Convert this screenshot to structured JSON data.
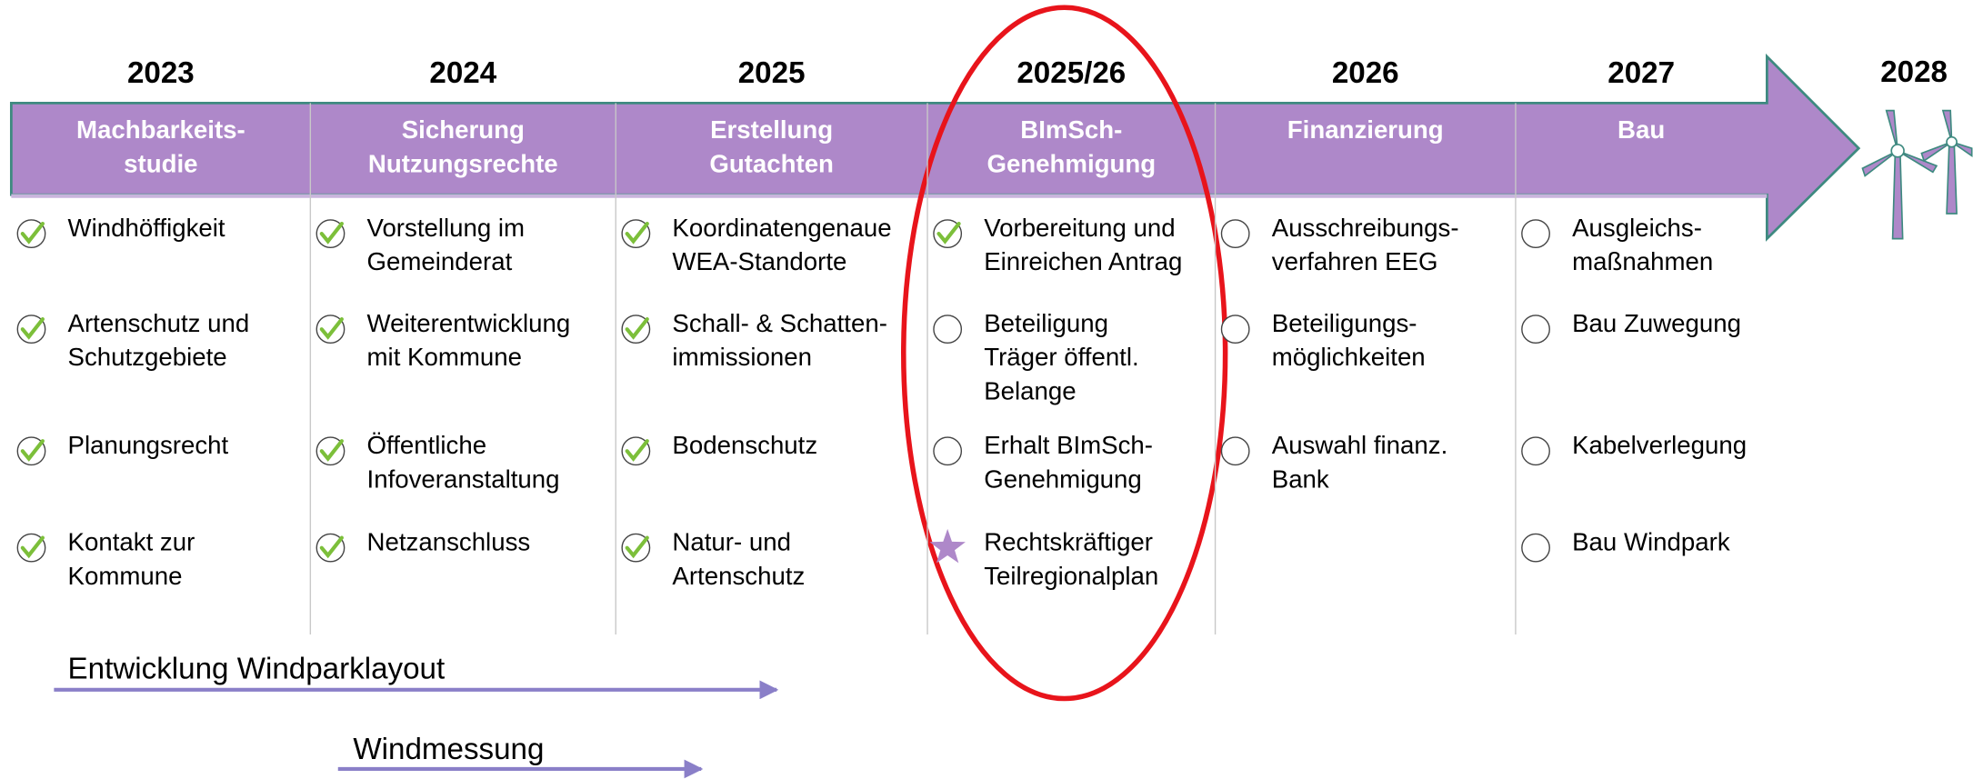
{
  "timeline": {
    "columns": [
      {
        "year": "2023",
        "phase": [
          "Machbarkeits-",
          "studie"
        ],
        "items": [
          {
            "status": "done",
            "lines": [
              "Windhöffigkeit"
            ]
          },
          {
            "status": "done",
            "lines": [
              "Artenschutz und",
              "Schutzgebiete"
            ]
          },
          {
            "status": "done",
            "lines": [
              "Planungsrecht"
            ]
          },
          {
            "status": "done",
            "lines": [
              "Kontakt zur",
              "Kommune"
            ]
          }
        ]
      },
      {
        "year": "2024",
        "phase": [
          "Sicherung",
          "Nutzungsrechte"
        ],
        "items": [
          {
            "status": "done",
            "lines": [
              "Vorstellung im",
              "Gemeinderat"
            ]
          },
          {
            "status": "done",
            "lines": [
              "Weiterentwicklung",
              "mit Kommune"
            ]
          },
          {
            "status": "done",
            "lines": [
              "Öffentliche",
              "Infoveranstaltung"
            ]
          },
          {
            "status": "done",
            "lines": [
              "Netzanschluss"
            ]
          }
        ]
      },
      {
        "year": "2025",
        "phase": [
          "Erstellung",
          "Gutachten"
        ],
        "items": [
          {
            "status": "done",
            "lines": [
              "Koordinatengenaue",
              "WEA-Standorte"
            ]
          },
          {
            "status": "done",
            "lines": [
              "Schall- & Schatten-",
              "immissionen"
            ]
          },
          {
            "status": "done",
            "lines": [
              "Bodenschutz"
            ]
          },
          {
            "status": "done",
            "lines": [
              "Natur- und",
              "Artenschutz"
            ]
          }
        ]
      },
      {
        "year": "2025/26",
        "phase": [
          "BImSch-",
          "Genehmigung"
        ],
        "items": [
          {
            "status": "done",
            "lines": [
              "Vorbereitung und",
              "Einreichen Antrag"
            ]
          },
          {
            "status": "open",
            "lines": [
              "Beteiligung",
              "Träger öffentl.",
              "Belange"
            ]
          },
          {
            "status": "open",
            "lines": [
              "Erhalt BImSch-",
              "Genehmigung"
            ]
          },
          {
            "status": "star",
            "lines": [
              "Rechtskräftiger",
              "Teilregionalplan"
            ]
          }
        ]
      },
      {
        "year": "2026",
        "phase": [
          "Finanzierung"
        ],
        "items": [
          {
            "status": "open",
            "lines": [
              "Ausschreibungs-",
              "verfahren EEG"
            ]
          },
          {
            "status": "open",
            "lines": [
              "Beteiligungs-",
              "möglichkeiten"
            ]
          },
          {
            "status": "open",
            "lines": [
              "Auswahl finanz.",
              "Bank"
            ]
          }
        ]
      },
      {
        "year": "2027",
        "phase": [
          "Bau"
        ],
        "items": [
          {
            "status": "open",
            "lines": [
              "Ausgleichs-",
              "maßnahmen"
            ]
          },
          {
            "status": "open",
            "lines": [
              "Bau Zuwegung"
            ]
          },
          {
            "status": "open",
            "lines": [
              "Kabelverlegung"
            ]
          },
          {
            "status": "open",
            "lines": [
              "Bau Windpark"
            ]
          }
        ]
      }
    ],
    "final_year": "2028",
    "tracks": [
      {
        "label": "Entwicklung Windparklayout"
      },
      {
        "label": "Windmessung"
      }
    ]
  }
}
